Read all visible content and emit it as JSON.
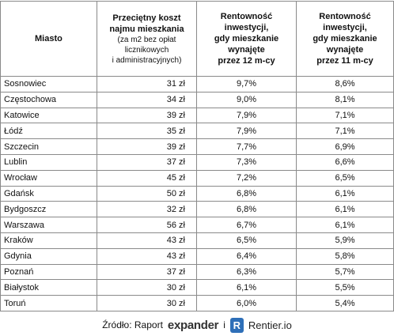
{
  "table": {
    "header": {
      "city": "Miasto",
      "cost": {
        "bold": [
          "Przeciętny koszt",
          "najmu mieszkania"
        ],
        "normal": [
          "(za m2 bez opłat",
          "licznikowych",
          "i administracyjnych)"
        ]
      },
      "yield12": [
        "Rentowność",
        "inwestycji,",
        "gdy mieszkanie",
        "wynajęte",
        "przez 12 m-cy"
      ],
      "yield11": [
        "Rentowność",
        "inwestycji,",
        "gdy mieszkanie",
        "wynajęte",
        "przez 11 m-cy"
      ]
    },
    "rows": [
      [
        "Sosnowiec",
        "31 zł",
        "9,7%",
        "8,6%"
      ],
      [
        "Częstochowa",
        "34 zł",
        "9,0%",
        "8,1%"
      ],
      [
        "Katowice",
        "39 zł",
        "7,9%",
        "7,1%"
      ],
      [
        "Łódź",
        "35 zł",
        "7,9%",
        "7,1%"
      ],
      [
        "Szczecin",
        "39 zł",
        "7,7%",
        "6,9%"
      ],
      [
        "Lublin",
        "37 zł",
        "7,3%",
        "6,6%"
      ],
      [
        "Wrocław",
        "45 zł",
        "7,2%",
        "6,5%"
      ],
      [
        "Gdańsk",
        "50 zł",
        "6,8%",
        "6,1%"
      ],
      [
        "Bydgoszcz",
        "32 zł",
        "6,8%",
        "6,1%"
      ],
      [
        "Warszawa",
        "56 zł",
        "6,7%",
        "6,1%"
      ],
      [
        "Kraków",
        "43 zł",
        "6,5%",
        "5,9%"
      ],
      [
        "Gdynia",
        "43 zł",
        "6,4%",
        "5,8%"
      ],
      [
        "Poznań",
        "37 zł",
        "6,3%",
        "5,7%"
      ],
      [
        "Białystok",
        "30 zł",
        "6,1%",
        "5,5%"
      ],
      [
        "Toruń",
        "30 zł",
        "6,0%",
        "5,4%"
      ]
    ]
  },
  "footer": {
    "source": "Źródło: Raport",
    "logo1": "expander",
    "joiner": "i",
    "logo_mark": "R",
    "logo2": "Rentier.io"
  }
}
